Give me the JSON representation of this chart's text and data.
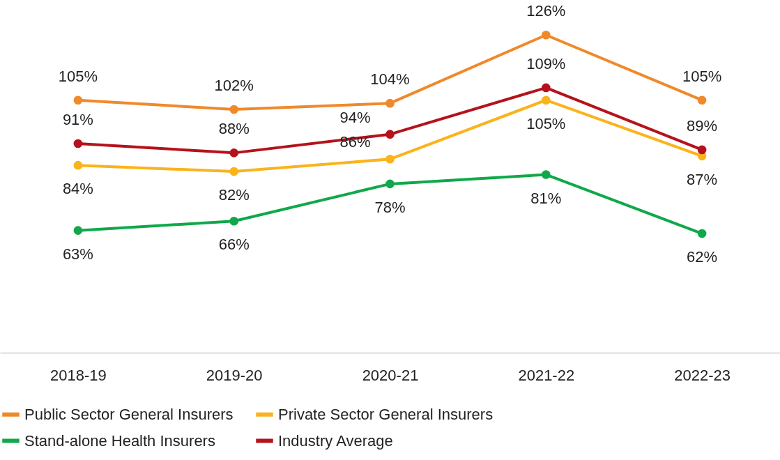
{
  "chart_data": {
    "type": "line",
    "categories": [
      "2018-19",
      "2019-20",
      "2020-21",
      "2021-22",
      "2022-23"
    ],
    "series": [
      {
        "name": "Public Sector General Insurers",
        "color": "#f0892a",
        "values": [
          105,
          102,
          104,
          126,
          105
        ],
        "value_labels": [
          "105%",
          "102%",
          "104%",
          "126%",
          "105%"
        ]
      },
      {
        "name": "Private Sector General Insurers",
        "color": "#fbb31c",
        "values": [
          84,
          82,
          86,
          105,
          87
        ],
        "value_labels": [
          "84%",
          "82%",
          "86%",
          "105%",
          "87%"
        ]
      },
      {
        "name": "Stand-alone Health Insurers",
        "color": "#10a84a",
        "values": [
          63,
          66,
          78,
          81,
          62
        ],
        "value_labels": [
          "63%",
          "66%",
          "78%",
          "81%",
          "62%"
        ]
      },
      {
        "name": "Industry Average",
        "color": "#b5121b",
        "values": [
          91,
          88,
          94,
          109,
          89
        ],
        "value_labels": [
          "91%",
          "88%",
          "94%",
          "109%",
          "89%"
        ]
      }
    ],
    "grid": false,
    "legend": "bottom",
    "marker": "circle",
    "line_style": "solid"
  }
}
